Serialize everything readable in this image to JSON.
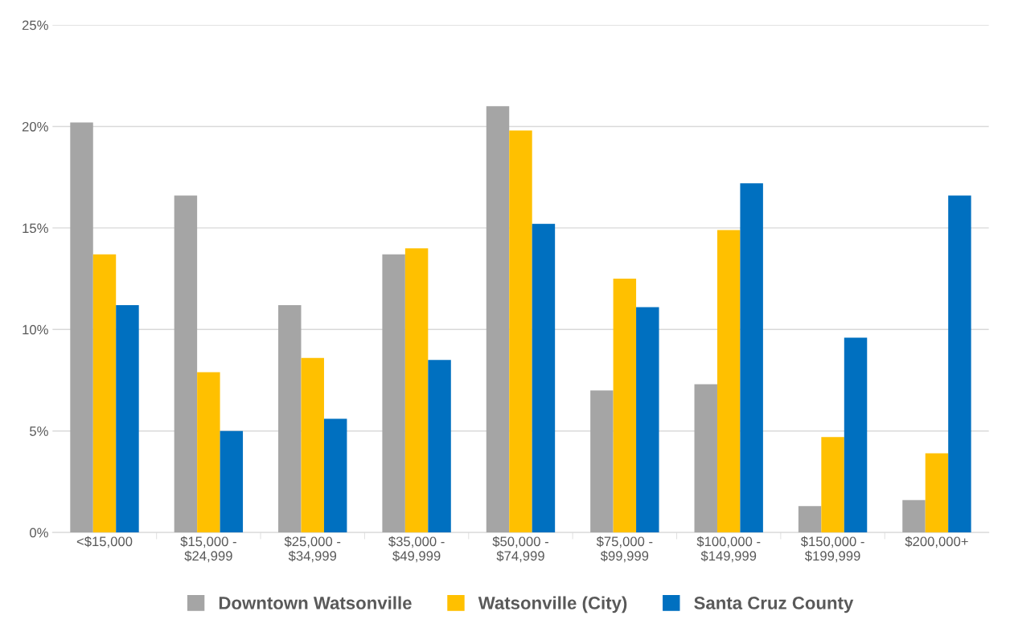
{
  "chart_data": {
    "type": "bar",
    "categories": [
      "<$15,000",
      "$15,000 -\n$24,999",
      "$25,000 -\n$34,999",
      "$35,000 -\n$49,999",
      "$50,000 -\n$74,999",
      "$75,000 -\n$99,999",
      "$100,000 -\n$149,999",
      "$150,000 -\n$199,999",
      "$200,000+"
    ],
    "series": [
      {
        "name": "Downtown Watsonville",
        "color": "#a5a5a5",
        "values": [
          20.2,
          16.6,
          11.2,
          13.7,
          21.0,
          7.0,
          7.3,
          1.3,
          1.6
        ]
      },
      {
        "name": "Watsonville (City)",
        "color": "#ffc000",
        "values": [
          13.7,
          7.9,
          8.6,
          14.0,
          19.8,
          12.5,
          14.9,
          4.7,
          3.9
        ]
      },
      {
        "name": "Santa Cruz County",
        "color": "#0070c0",
        "values": [
          11.2,
          5.0,
          5.6,
          8.5,
          15.2,
          11.1,
          17.2,
          9.6,
          16.6
        ]
      }
    ],
    "ylim": [
      0,
      25
    ],
    "yticks": [
      {
        "value": 0,
        "label": "0%"
      },
      {
        "value": 5,
        "label": "5%"
      },
      {
        "value": 10,
        "label": "10%"
      },
      {
        "value": 15,
        "label": "15%"
      },
      {
        "value": 20,
        "label": "20%"
      },
      {
        "value": 25,
        "label": "25%"
      }
    ],
    "grid": "y",
    "legend": "bottom"
  }
}
